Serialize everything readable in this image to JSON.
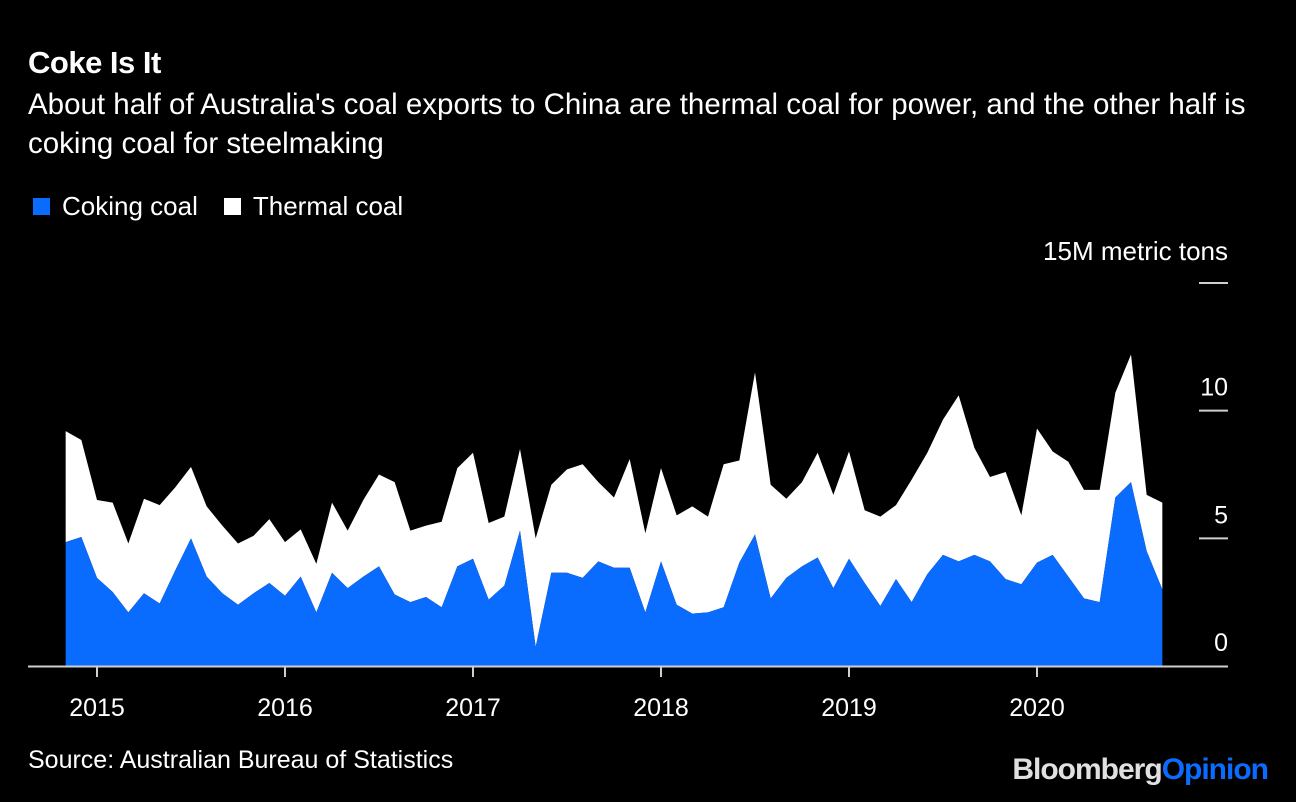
{
  "header": {
    "title": "Coke Is It",
    "subtitle": "About half of Australia's coal exports to China are thermal coal for power, and the other half is coking coal for steelmaking"
  },
  "legend": [
    {
      "label": "Coking coal",
      "color": "#0a6bff"
    },
    {
      "label": "Thermal coal",
      "color": "#ffffff"
    }
  ],
  "footer": {
    "source": "Source: Australian Bureau of Statistics",
    "logo_primary": "Bloomberg",
    "logo_secondary": "Opinion"
  },
  "chart_data": {
    "type": "area",
    "stacked": true,
    "title": "Coke Is It",
    "subtitle": "About half of Australia's coal exports to China are thermal coal for power, and the other half is coking coal for steelmaking",
    "xlabel": "",
    "ylabel": "15M metric tons",
    "y_unit_label": "15M metric tons",
    "ylim": [
      0,
      15
    ],
    "yticks": [
      0,
      5,
      10,
      15
    ],
    "ytick_labels": [
      "0",
      "5",
      "10",
      "15M metric tons"
    ],
    "xticks": [
      "2015",
      "2016",
      "2017",
      "2018",
      "2019",
      "2020"
    ],
    "grid": false,
    "legend_position": "top-left",
    "x": [
      "2014-11",
      "2014-12",
      "2015-01",
      "2015-02",
      "2015-03",
      "2015-04",
      "2015-05",
      "2015-06",
      "2015-07",
      "2015-08",
      "2015-09",
      "2015-10",
      "2015-11",
      "2015-12",
      "2016-01",
      "2016-02",
      "2016-03",
      "2016-04",
      "2016-05",
      "2016-06",
      "2016-07",
      "2016-08",
      "2016-09",
      "2016-10",
      "2016-11",
      "2016-12",
      "2017-01",
      "2017-02",
      "2017-03",
      "2017-04",
      "2017-05",
      "2017-06",
      "2017-07",
      "2017-08",
      "2017-09",
      "2017-10",
      "2017-11",
      "2017-12",
      "2018-01",
      "2018-02",
      "2018-03",
      "2018-04",
      "2018-05",
      "2018-06",
      "2018-07",
      "2018-08",
      "2018-09",
      "2018-10",
      "2018-11",
      "2018-12",
      "2019-01",
      "2019-02",
      "2019-03",
      "2019-04",
      "2019-05",
      "2019-06",
      "2019-07",
      "2019-08",
      "2019-09",
      "2019-10",
      "2019-11",
      "2019-12",
      "2020-01",
      "2020-02",
      "2020-03",
      "2020-04",
      "2020-05",
      "2020-06",
      "2020-07",
      "2020-08",
      "2020-09"
    ],
    "series": [
      {
        "name": "Coking coal",
        "color": "#0a6bff",
        "values": [
          4.85,
          5.05,
          3.45,
          2.9,
          2.1,
          2.85,
          2.45,
          3.75,
          5.0,
          3.5,
          2.85,
          2.4,
          2.85,
          3.25,
          2.75,
          3.5,
          2.1,
          3.65,
          3.05,
          3.5,
          3.9,
          2.8,
          2.5,
          2.7,
          2.3,
          3.9,
          4.2,
          2.6,
          3.15,
          5.3,
          0.75,
          3.65,
          3.65,
          3.45,
          4.1,
          3.85,
          3.85,
          2.1,
          4.1,
          2.4,
          2.05,
          2.1,
          2.3,
          4.05,
          5.15,
          2.65,
          3.45,
          3.9,
          4.25,
          3.05,
          4.2,
          3.25,
          2.35,
          3.4,
          2.5,
          3.6,
          4.35,
          4.1,
          4.35,
          4.1,
          3.4,
          3.2,
          4.05,
          4.35,
          3.5,
          2.65,
          2.5,
          6.6,
          7.2,
          4.5,
          3.0
        ]
      },
      {
        "name": "Thermal coal",
        "color": "#ffffff",
        "values": [
          4.35,
          3.8,
          3.05,
          3.5,
          2.7,
          3.7,
          3.85,
          3.25,
          2.8,
          2.75,
          2.65,
          2.4,
          2.25,
          2.5,
          2.1,
          1.85,
          1.9,
          2.75,
          2.25,
          3.0,
          3.6,
          4.4,
          2.8,
          2.8,
          3.35,
          3.85,
          4.15,
          3.0,
          2.7,
          3.2,
          4.25,
          3.45,
          4.05,
          4.45,
          3.1,
          2.75,
          4.25,
          3.1,
          3.65,
          3.5,
          4.2,
          3.75,
          5.6,
          4.0,
          6.35,
          4.45,
          3.1,
          3.3,
          4.1,
          3.65,
          4.2,
          2.85,
          3.5,
          2.9,
          4.8,
          4.75,
          5.3,
          6.5,
          4.2,
          3.3,
          4.2,
          2.7,
          5.25,
          4.05,
          4.5,
          4.25,
          4.4,
          4.1,
          5.0,
          2.2,
          3.4
        ]
      }
    ]
  }
}
